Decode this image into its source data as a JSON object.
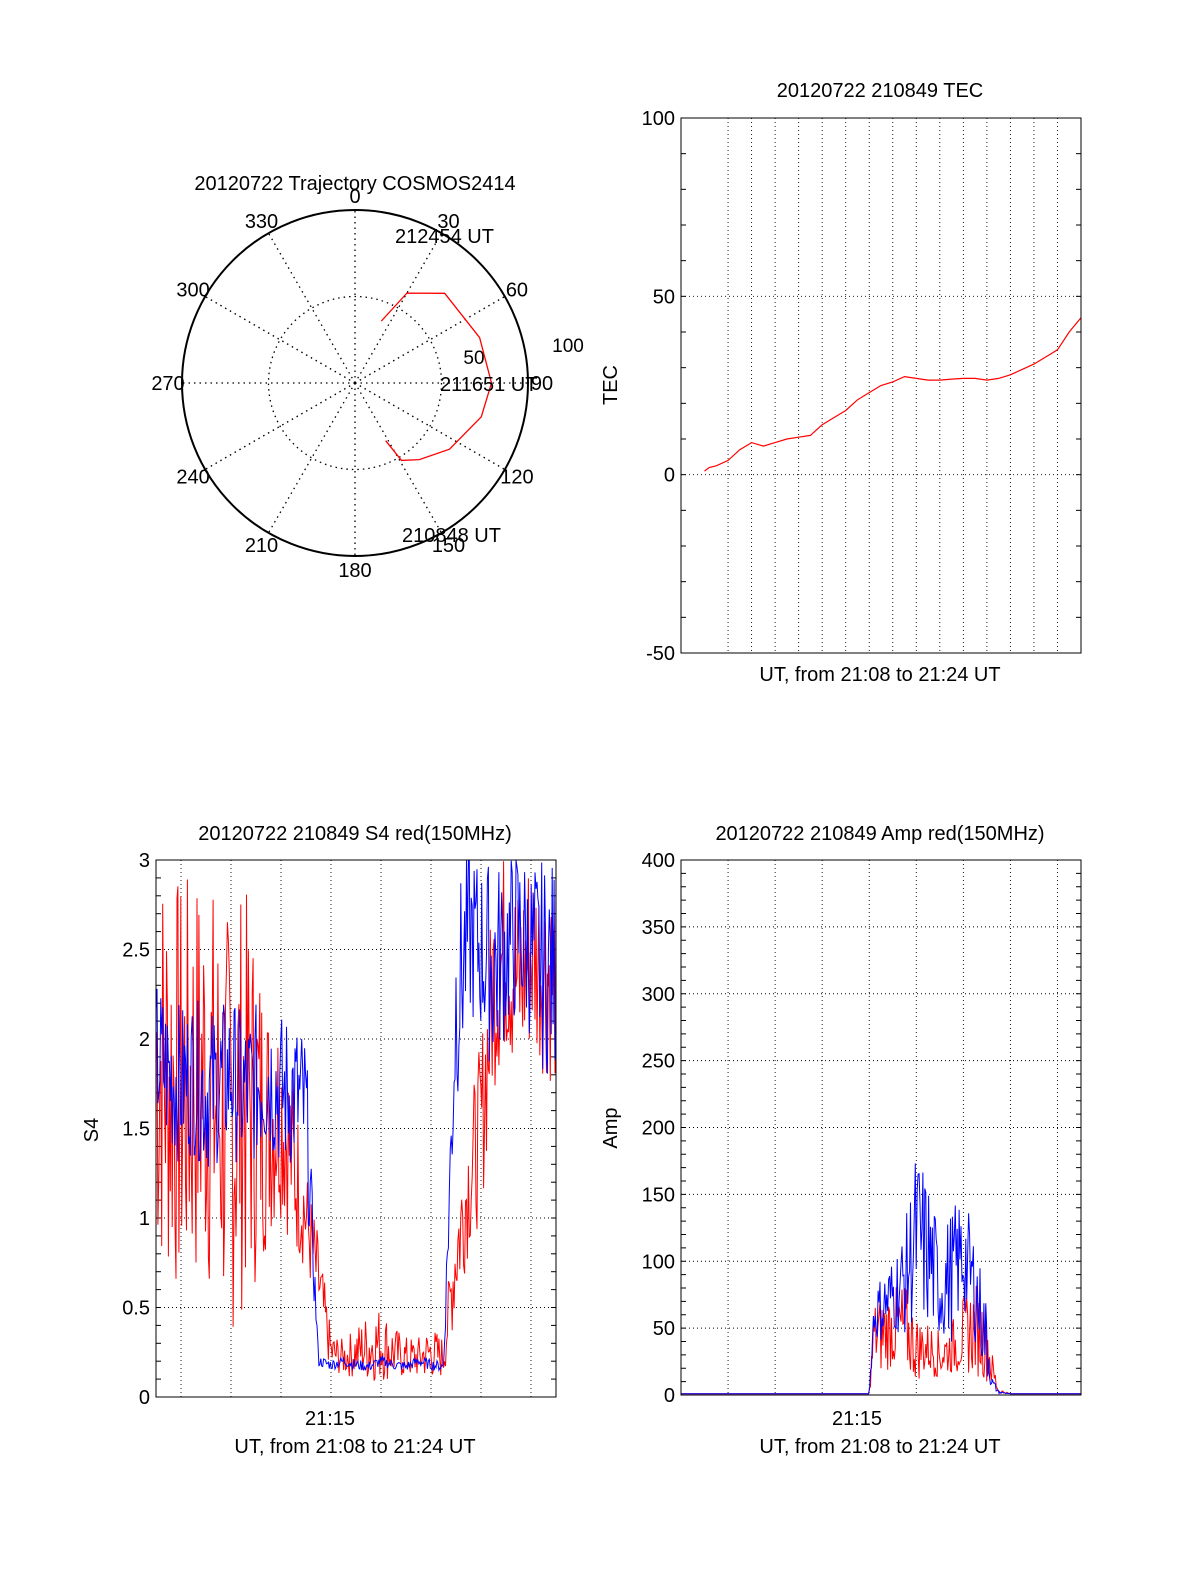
{
  "chart_data": [
    {
      "id": "polar",
      "type": "scatter",
      "title": "20120722 Trajectory COSMOS2414",
      "angle_labels": [
        "0",
        "30",
        "60",
        "90",
        "120",
        "150",
        "180",
        "210",
        "240",
        "270",
        "300",
        "330"
      ],
      "radius_labels": [
        "50",
        "100"
      ],
      "annotations": [
        "212454 UT",
        "211651 UT",
        "210848 UT"
      ],
      "series": [
        {
          "color": "#ff0000",
          "points": [
            [
              23,
              55
            ],
            [
              30,
              36
            ],
            [
              45,
              24
            ],
            [
              70,
              21
            ],
            [
              90,
              19
            ],
            [
              105,
              22
            ],
            [
              125,
              30
            ],
            [
              140,
              38
            ],
            [
              149,
              43
            ],
            [
              152,
              56
            ]
          ]
        }
      ]
    },
    {
      "id": "tec",
      "type": "line",
      "title": "20120722 210849 TEC",
      "ylabel": "TEC",
      "xlabel": "UT, from 21:08 to 21:24 UT",
      "ylim": [
        -50,
        100
      ],
      "yticks": [
        "100",
        "50",
        "0",
        "-50"
      ],
      "series": [
        {
          "color": "#ff0000",
          "x": [
            0,
            0.2,
            0.5,
            1,
            1.5,
            2,
            2.5,
            3,
            3.5,
            4,
            4.5,
            5,
            5.5,
            6,
            6.5,
            7,
            7.5,
            8,
            8.5,
            9,
            9.5,
            10,
            10.5,
            11,
            11.5,
            12,
            12.5,
            13,
            13.5,
            14,
            14.5,
            15,
            15.5,
            16
          ],
          "y": [
            1,
            2,
            2.5,
            4,
            7,
            9,
            8,
            9,
            10,
            10.5,
            11,
            14,
            16,
            18,
            21,
            23,
            25,
            26,
            27.5,
            27,
            26.5,
            26.5,
            26.8,
            27,
            27,
            26.5,
            27,
            28,
            29.5,
            31,
            33,
            35,
            40,
            44
          ]
        }
      ]
    },
    {
      "id": "s4",
      "type": "line",
      "title": "20120722 210849 S4 red(150MHz)",
      "ylabel": "S4",
      "xlabel": "UT, from 21:08 to 21:24 UT",
      "xtick_label": "21:15",
      "ylim": [
        0,
        3
      ],
      "yticks": [
        "3",
        "2.5",
        "2",
        "1.5",
        "1",
        "0.5",
        "0"
      ],
      "series": [
        {
          "color": "#ff0000",
          "x": [
            0,
            0.5,
            1,
            1.5,
            2,
            2.5,
            3,
            3.5,
            4,
            4.5,
            5,
            5.5,
            6,
            6.5,
            7,
            7.5,
            8,
            8.5,
            9,
            9.5,
            10,
            10.5,
            11,
            11.5,
            12,
            12.5,
            13,
            13.5,
            14,
            14.5,
            15,
            15.5,
            16
          ],
          "mid": [
            1.9,
            1.8,
            1.7,
            1.75,
            1.8,
            1.6,
            1.5,
            1.7,
            1.6,
            1.55,
            1.6,
            1.3,
            1.0,
            0.65,
            0.25,
            0.22,
            0.25,
            0.28,
            0.3,
            0.25,
            0.22,
            0.22,
            0.25,
            0.22,
            0.8,
            1.2,
            1.5,
            2.3,
            2.5,
            2.3,
            2.5,
            2.4,
            2.3
          ],
          "amp": [
            1.2,
            1.2,
            1.2,
            1.2,
            1.2,
            1.2,
            1.2,
            1.2,
            1.0,
            0.7,
            0.6,
            0.5,
            0.3,
            0.25,
            0.12,
            0.1,
            0.15,
            0.2,
            0.22,
            0.15,
            0.12,
            0.12,
            0.15,
            0.12,
            0.35,
            0.4,
            0.5,
            0.6,
            0.6,
            0.6,
            0.6,
            0.6,
            0.6
          ]
        },
        {
          "color": "#0000ff",
          "x": [
            0,
            0.5,
            1,
            1.5,
            2,
            2.5,
            3,
            3.5,
            4,
            4.5,
            5,
            5.5,
            6,
            6.5,
            7,
            7.5,
            8,
            8.5,
            9,
            9.5,
            10,
            10.5,
            11,
            11.5,
            12,
            12.5,
            13,
            13.5,
            14,
            14.5,
            15,
            15.5,
            16
          ],
          "mid": [
            1.9,
            1.8,
            1.75,
            1.8,
            1.7,
            1.75,
            1.8,
            1.7,
            1.75,
            1.8,
            1.7,
            1.7,
            1.6,
            0.2,
            0.18,
            0.2,
            0.18,
            0.17,
            0.2,
            0.18,
            0.17,
            0.2,
            0.18,
            0.17,
            2.2,
            2.6,
            2.5,
            2.4,
            2.5,
            2.6,
            2.5,
            2.4,
            2.4
          ],
          "amp": [
            0.45,
            0.45,
            0.45,
            0.45,
            0.45,
            0.45,
            0.45,
            0.45,
            0.45,
            0.45,
            0.45,
            0.45,
            0.45,
            0.03,
            0.03,
            0.03,
            0.03,
            0.03,
            0.03,
            0.03,
            0.03,
            0.03,
            0.03,
            0.03,
            0.6,
            0.5,
            0.5,
            0.6,
            0.5,
            0.5,
            0.5,
            0.6,
            0.6
          ]
        }
      ]
    },
    {
      "id": "amp",
      "type": "line",
      "title": "20120722 210849 Amp red(150MHz)",
      "ylabel": "Amp",
      "xlabel": "UT, from 21:08 to 21:24 UT",
      "xtick_label": "21:15",
      "ylim": [
        0,
        400
      ],
      "yticks": [
        "400",
        "350",
        "300",
        "250",
        "200",
        "150",
        "100",
        "50",
        "0"
      ],
      "series": [
        {
          "color": "#ff0000",
          "x": [
            0,
            6,
            7,
            7.2,
            7.5,
            8,
            8.5,
            9,
            9.5,
            10,
            10.5,
            11,
            11.5,
            12,
            12.2,
            12.5,
            13,
            16
          ],
          "mid": [
            1,
            1,
            1,
            45,
            45,
            50,
            50,
            35,
            35,
            30,
            35,
            45,
            50,
            40,
            20,
            3,
            1,
            1
          ],
          "amp": [
            0,
            0,
            0,
            25,
            30,
            30,
            35,
            25,
            20,
            18,
            20,
            30,
            35,
            30,
            15,
            2,
            0,
            0
          ]
        },
        {
          "color": "#0000ff",
          "x": [
            0,
            6,
            7,
            7.2,
            7.5,
            8,
            8.5,
            9,
            9.5,
            10,
            10.5,
            11,
            11.5,
            12,
            12.2,
            12.5,
            13,
            16
          ],
          "mid": [
            1,
            1,
            1,
            60,
            65,
            75,
            85,
            120,
            105,
            80,
            90,
            105,
            80,
            40,
            10,
            2,
            1,
            1
          ],
          "amp": [
            0,
            0,
            0,
            20,
            25,
            30,
            40,
            65,
            60,
            40,
            50,
            45,
            40,
            30,
            5,
            1,
            0,
            0
          ]
        }
      ]
    }
  ]
}
